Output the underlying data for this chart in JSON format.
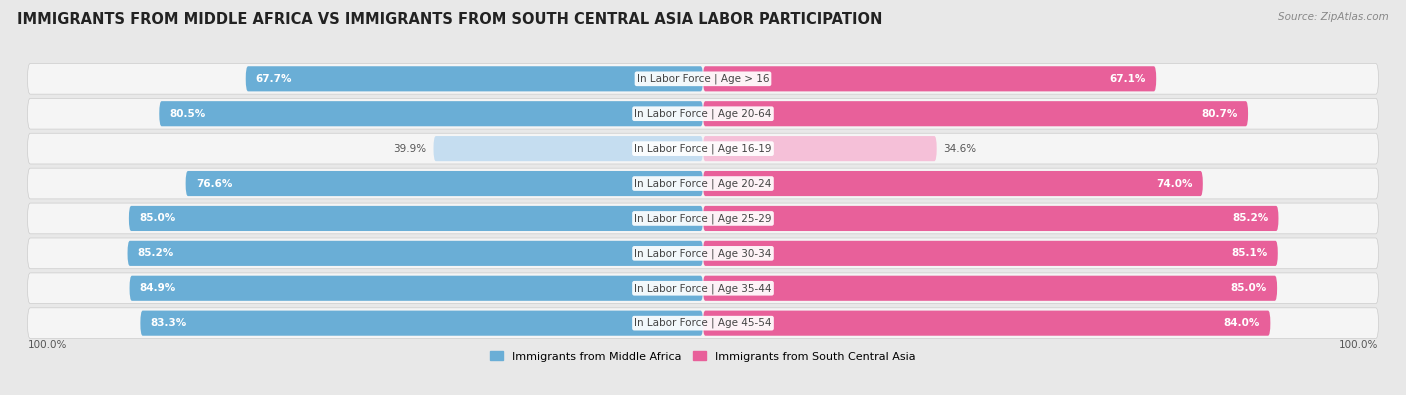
{
  "title": "IMMIGRANTS FROM MIDDLE AFRICA VS IMMIGRANTS FROM SOUTH CENTRAL ASIA LABOR PARTICIPATION",
  "source": "Source: ZipAtlas.com",
  "categories": [
    "In Labor Force | Age > 16",
    "In Labor Force | Age 20-64",
    "In Labor Force | Age 16-19",
    "In Labor Force | Age 20-24",
    "In Labor Force | Age 25-29",
    "In Labor Force | Age 30-34",
    "In Labor Force | Age 35-44",
    "In Labor Force | Age 45-54"
  ],
  "left_values": [
    67.7,
    80.5,
    39.9,
    76.6,
    85.0,
    85.2,
    84.9,
    83.3
  ],
  "right_values": [
    67.1,
    80.7,
    34.6,
    74.0,
    85.2,
    85.1,
    85.0,
    84.0
  ],
  "left_color": "#6aaed6",
  "right_color": "#e8609a",
  "left_color_light": "#c5ddf0",
  "right_color_light": "#f5c0d8",
  "left_label": "Immigrants from Middle Africa",
  "right_label": "Immigrants from South Central Asia",
  "max_value": 100.0,
  "bg_color": "#e8e8e8",
  "row_bg": "#f5f5f5",
  "title_fontsize": 10.5,
  "cat_fontsize": 7.5,
  "value_fontsize": 7.5,
  "source_fontsize": 7.5,
  "legend_fontsize": 8
}
